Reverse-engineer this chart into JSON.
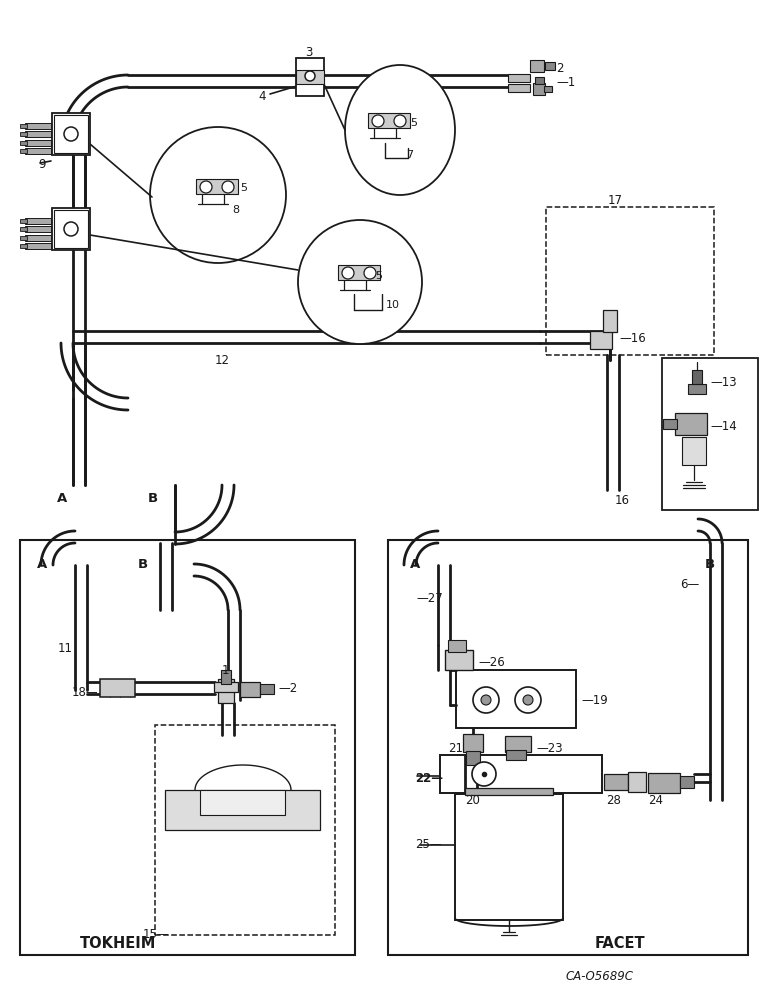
{
  "bg_color": "#ffffff",
  "lc": "#1a1a1a",
  "title": "CA-O5689C",
  "tokheim": "TOKHEIM",
  "facet": "FACET",
  "plw": 2.0,
  "lw": 1.2,
  "tlw": 0.8
}
